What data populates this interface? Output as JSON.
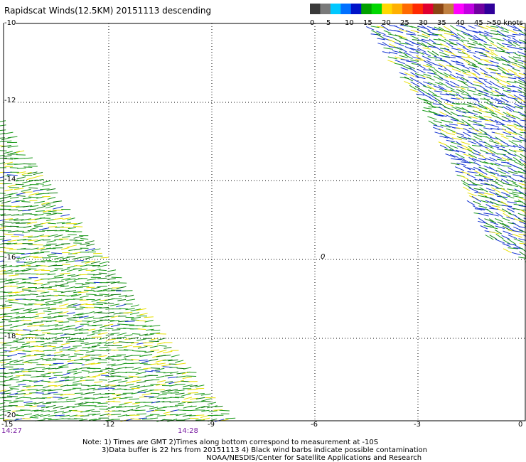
{
  "title": "Rapidscat Winds(12.5KM) 20151113 descending",
  "colorbar": {
    "units_label": ">50 knots",
    "tick_labels": [
      "0",
      "5",
      "10",
      "15",
      "20",
      "25",
      "30",
      "35",
      "40",
      "45"
    ],
    "colors": [
      "#3a3a3a",
      "#7a7a7a",
      "#00c8ff",
      "#0070ff",
      "#0014c8",
      "#00a000",
      "#00d800",
      "#ffd800",
      "#ffb000",
      "#ff6a00",
      "#ff2a00",
      "#e00030",
      "#8b4513",
      "#c08040",
      "#ff00ff",
      "#c000e0",
      "#7000a0",
      "#30009a"
    ]
  },
  "map": {
    "lat_labels": [
      "-10",
      "-12",
      "-14",
      "-16",
      "-18",
      "-20"
    ],
    "lon_labels": [
      "-12",
      "-9",
      "-6",
      "-3",
      "0"
    ],
    "corner_label": "-15",
    "time_labels": [
      "14:27",
      "14:28"
    ],
    "center_marker": "0",
    "swath_colors": {
      "green": "#1a9a1a",
      "dark_green": "#0a7a0a",
      "blue": "#1030d0",
      "yellow": "#e8e000"
    }
  },
  "notes": {
    "line1": "Note: 1) Times are GMT 2)Times along bottom correspond to measurement at -10S",
    "line2": "3)Data buffer is 22 hrs from 20151113 4) Black wind barbs indicate possible contamination",
    "line3": "NOAA/NESDIS/Center for Satellite Applications and Research"
  }
}
